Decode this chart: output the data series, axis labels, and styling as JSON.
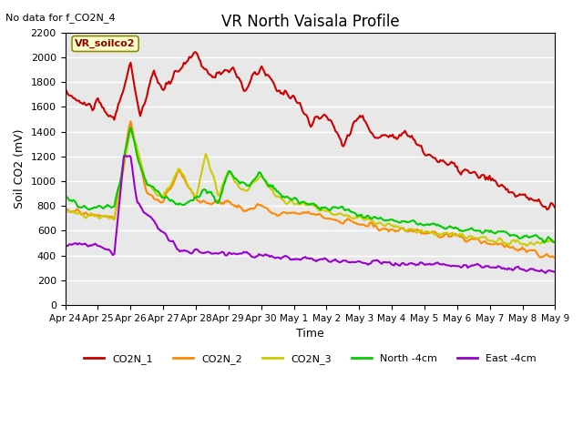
{
  "title": "VR North Vaisala Profile",
  "subtitle": "No data for f_CO2N_4",
  "ylabel": "Soil CO2 (mV)",
  "xlabel": "Time",
  "annotation": "VR_soilco2",
  "ylim": [
    0,
    2200
  ],
  "background_color": "#e8e8e8",
  "grid_color": "white",
  "series": {
    "CO2N_1": {
      "color": "#cc0000",
      "linewidth": 1.5
    },
    "CO2N_2": {
      "color": "#ff8800",
      "linewidth": 1.5
    },
    "CO2N_3": {
      "color": "#cccc00",
      "linewidth": 1.5
    },
    "North_4cm": {
      "color": "#00cc00",
      "linewidth": 1.5
    },
    "East_4cm": {
      "color": "#9900cc",
      "linewidth": 1.5
    }
  },
  "xtick_labels": [
    "Apr 24",
    "Apr 25",
    "Apr 26",
    "Apr 27",
    "Apr 28",
    "Apr 29",
    "Apr 30",
    "May 1",
    "May 2",
    "May 3",
    "May 4",
    "May 5",
    "May 6",
    "May 7",
    "May 8",
    "May 9"
  ],
  "ytick_vals": [
    0,
    200,
    400,
    600,
    800,
    1000,
    1200,
    1400,
    1600,
    1800,
    2000,
    2200
  ]
}
